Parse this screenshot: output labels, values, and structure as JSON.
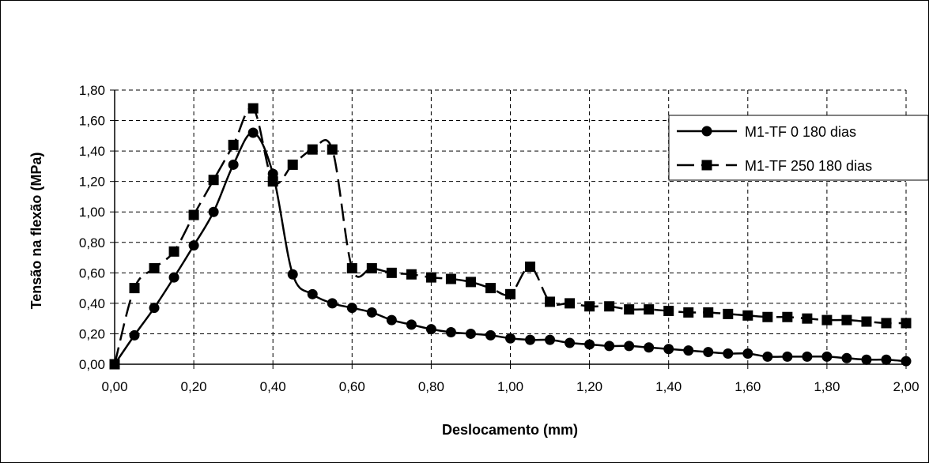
{
  "chart_data": {
    "type": "line",
    "xlabel": "Deslocamento (mm)",
    "ylabel": "Tensão na flexão (MPa)",
    "xlim": [
      0,
      2.0
    ],
    "ylim": [
      0,
      1.8
    ],
    "x_ticks": [
      "0,00",
      "0,20",
      "0,40",
      "0,60",
      "0,80",
      "1,00",
      "1,20",
      "1,40",
      "1,60",
      "1,80",
      "2,00"
    ],
    "y_ticks": [
      "0,00",
      "0,20",
      "0,40",
      "0,60",
      "0,80",
      "1,00",
      "1,20",
      "1,40",
      "1,60",
      "1,80"
    ],
    "grid": true,
    "legend_position": "top-right",
    "series": [
      {
        "name": "M1-TF 0 180 dias",
        "marker": "circle",
        "line_style": "solid",
        "x": [
          0,
          0.05,
          0.1,
          0.15,
          0.2,
          0.25,
          0.3,
          0.35,
          0.4,
          0.45,
          0.5,
          0.55,
          0.6,
          0.65,
          0.7,
          0.75,
          0.8,
          0.85,
          0.9,
          0.95,
          1.0,
          1.05,
          1.1,
          1.15,
          1.2,
          1.25,
          1.3,
          1.35,
          1.4,
          1.45,
          1.5,
          1.55,
          1.6,
          1.65,
          1.7,
          1.75,
          1.8,
          1.85,
          1.9,
          1.95,
          2.0
        ],
        "y": [
          0.0,
          0.19,
          0.37,
          0.57,
          0.78,
          1.0,
          1.31,
          1.52,
          1.25,
          0.59,
          0.46,
          0.4,
          0.37,
          0.34,
          0.29,
          0.26,
          0.23,
          0.21,
          0.2,
          0.19,
          0.17,
          0.16,
          0.16,
          0.14,
          0.13,
          0.12,
          0.12,
          0.11,
          0.1,
          0.09,
          0.08,
          0.07,
          0.07,
          0.05,
          0.05,
          0.05,
          0.05,
          0.04,
          0.03,
          0.03,
          0.02
        ]
      },
      {
        "name": "M1-TF 250 180 dias",
        "marker": "square",
        "line_style": "dashed",
        "x": [
          0,
          0.05,
          0.1,
          0.15,
          0.2,
          0.25,
          0.3,
          0.35,
          0.4,
          0.45,
          0.5,
          0.55,
          0.6,
          0.65,
          0.7,
          0.75,
          0.8,
          0.85,
          0.9,
          0.95,
          1.0,
          1.05,
          1.1,
          1.15,
          1.2,
          1.25,
          1.3,
          1.35,
          1.4,
          1.45,
          1.5,
          1.55,
          1.6,
          1.65,
          1.7,
          1.75,
          1.8,
          1.85,
          1.9,
          1.95,
          2.0
        ],
        "y": [
          0.0,
          0.5,
          0.63,
          0.74,
          0.98,
          1.21,
          1.44,
          1.68,
          1.2,
          1.31,
          1.41,
          1.41,
          0.63,
          0.63,
          0.6,
          0.59,
          0.57,
          0.56,
          0.54,
          0.5,
          0.46,
          0.64,
          0.41,
          0.4,
          0.38,
          0.38,
          0.36,
          0.36,
          0.35,
          0.34,
          0.34,
          0.33,
          0.32,
          0.31,
          0.31,
          0.3,
          0.29,
          0.29,
          0.28,
          0.27,
          0.27
        ]
      }
    ]
  }
}
